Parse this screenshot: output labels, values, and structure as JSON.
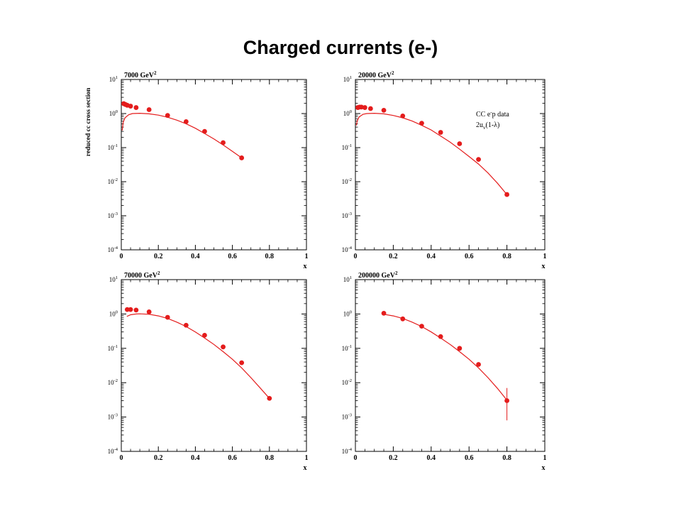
{
  "slide": {
    "title": "Charged currents (e-)"
  },
  "chart_data": [
    {
      "type": "scatter",
      "title": "7000 GeV2",
      "title_main": "7000 GeV",
      "title_sup": "2",
      "ylabel": "reduced cc cross section",
      "xlabel": "x",
      "xlim": [
        0,
        1
      ],
      "ylim": [
        0.0001,
        10
      ],
      "yscale": "log",
      "xticks": [
        0,
        0.2,
        0.4,
        0.6,
        0.8,
        1
      ],
      "ytick_exps": [
        1,
        0,
        -1,
        -2,
        -3,
        -4
      ],
      "series": [
        {
          "kind": "points",
          "x": [
            0.013,
            0.022,
            0.032,
            0.05,
            0.08,
            0.15,
            0.25,
            0.35,
            0.45,
            0.55,
            0.65
          ],
          "y": [
            1.95,
            1.85,
            1.75,
            1.65,
            1.5,
            1.3,
            0.88,
            0.58,
            0.3,
            0.14,
            0.05
          ]
        },
        {
          "kind": "curve",
          "x": [
            0.005,
            0.01,
            0.02,
            0.04,
            0.06,
            0.1,
            0.15,
            0.2,
            0.25,
            0.3,
            0.35,
            0.4,
            0.45,
            0.5,
            0.55,
            0.6,
            0.65
          ],
          "y": [
            0.32,
            0.55,
            0.75,
            0.92,
            1.0,
            1.02,
            0.98,
            0.9,
            0.78,
            0.64,
            0.5,
            0.37,
            0.26,
            0.18,
            0.12,
            0.078,
            0.05
          ]
        }
      ]
    },
    {
      "type": "scatter",
      "title": "20000 GeV2",
      "title_main": "20000 GeV",
      "title_sup": "2",
      "xlabel": "x",
      "xlim": [
        0,
        1
      ],
      "ylim": [
        0.0001,
        10
      ],
      "yscale": "log",
      "xticks": [
        0,
        0.2,
        0.4,
        0.6,
        0.8,
        1
      ],
      "ytick_exps": [
        1,
        0,
        -1,
        -2,
        -3,
        -4
      ],
      "legend": {
        "line1_a": "CC e",
        "line1_sup": "-",
        "line1_b": "p data",
        "line2_a": "2u",
        "line2_sub": "v",
        "line2_b": "(1-λ)"
      },
      "series": [
        {
          "kind": "points",
          "x": [
            0.013,
            0.022,
            0.032,
            0.05,
            0.08,
            0.15,
            0.25,
            0.35,
            0.45,
            0.55,
            0.65,
            0.8
          ],
          "y": [
            1.5,
            1.55,
            1.55,
            1.5,
            1.4,
            1.25,
            0.85,
            0.52,
            0.28,
            0.13,
            0.045,
            0.0042
          ]
        },
        {
          "kind": "curve",
          "x": [
            0.005,
            0.01,
            0.02,
            0.04,
            0.06,
            0.1,
            0.15,
            0.2,
            0.25,
            0.3,
            0.35,
            0.4,
            0.45,
            0.5,
            0.55,
            0.6,
            0.65,
            0.7,
            0.75,
            0.8
          ],
          "y": [
            0.45,
            0.62,
            0.8,
            0.95,
            1.0,
            1.02,
            0.98,
            0.88,
            0.75,
            0.6,
            0.45,
            0.33,
            0.22,
            0.145,
            0.09,
            0.055,
            0.033,
            0.018,
            0.009,
            0.0042
          ]
        }
      ]
    },
    {
      "type": "scatter",
      "title": "70000 GeV2",
      "title_main": "70000 GeV",
      "title_sup": "2",
      "xlabel": "x",
      "xlim": [
        0,
        1
      ],
      "ylim": [
        0.0001,
        10
      ],
      "yscale": "log",
      "xticks": [
        0,
        0.2,
        0.4,
        0.6,
        0.8,
        1
      ],
      "ytick_exps": [
        1,
        0,
        -1,
        -2,
        -3,
        -4
      ],
      "series": [
        {
          "kind": "points",
          "x": [
            0.032,
            0.05,
            0.08,
            0.15,
            0.25,
            0.35,
            0.45,
            0.55,
            0.65,
            0.8
          ],
          "y": [
            1.35,
            1.35,
            1.3,
            1.15,
            0.8,
            0.47,
            0.24,
            0.11,
            0.038,
            0.0035
          ]
        },
        {
          "kind": "curve",
          "x": [
            0.03,
            0.05,
            0.08,
            0.1,
            0.15,
            0.2,
            0.25,
            0.3,
            0.35,
            0.4,
            0.45,
            0.5,
            0.55,
            0.6,
            0.65,
            0.7,
            0.75,
            0.8
          ],
          "y": [
            0.85,
            0.95,
            1.0,
            1.01,
            0.98,
            0.88,
            0.74,
            0.58,
            0.43,
            0.3,
            0.2,
            0.13,
            0.08,
            0.048,
            0.027,
            0.014,
            0.007,
            0.0035
          ]
        }
      ]
    },
    {
      "type": "scatter",
      "title": "200000 GeV2",
      "title_main": "200000 GeV",
      "title_sup": "2",
      "xlabel": "x",
      "xlim": [
        0,
        1
      ],
      "ylim": [
        0.0001,
        10
      ],
      "yscale": "log",
      "xticks": [
        0,
        0.2,
        0.4,
        0.6,
        0.8,
        1
      ],
      "ytick_exps": [
        1,
        0,
        -1,
        -2,
        -3,
        -4
      ],
      "series": [
        {
          "kind": "points",
          "x": [
            0.15,
            0.25,
            0.35,
            0.45,
            0.55,
            0.65,
            0.8
          ],
          "y": [
            1.05,
            0.72,
            0.44,
            0.22,
            0.1,
            0.034,
            0.003
          ],
          "err_low": [
            0,
            0,
            0,
            0,
            0,
            0,
            0.0022
          ],
          "err_high": [
            0,
            0,
            0,
            0,
            0,
            0,
            0.004
          ]
        },
        {
          "kind": "curve",
          "x": [
            0.15,
            0.2,
            0.25,
            0.3,
            0.35,
            0.4,
            0.45,
            0.5,
            0.55,
            0.6,
            0.65,
            0.7,
            0.75,
            0.8
          ],
          "y": [
            0.98,
            0.88,
            0.74,
            0.58,
            0.43,
            0.3,
            0.2,
            0.13,
            0.08,
            0.048,
            0.027,
            0.014,
            0.0068,
            0.0031
          ]
        }
      ]
    }
  ],
  "colors": {
    "data": "#e41c1c",
    "axes": "#000000"
  }
}
